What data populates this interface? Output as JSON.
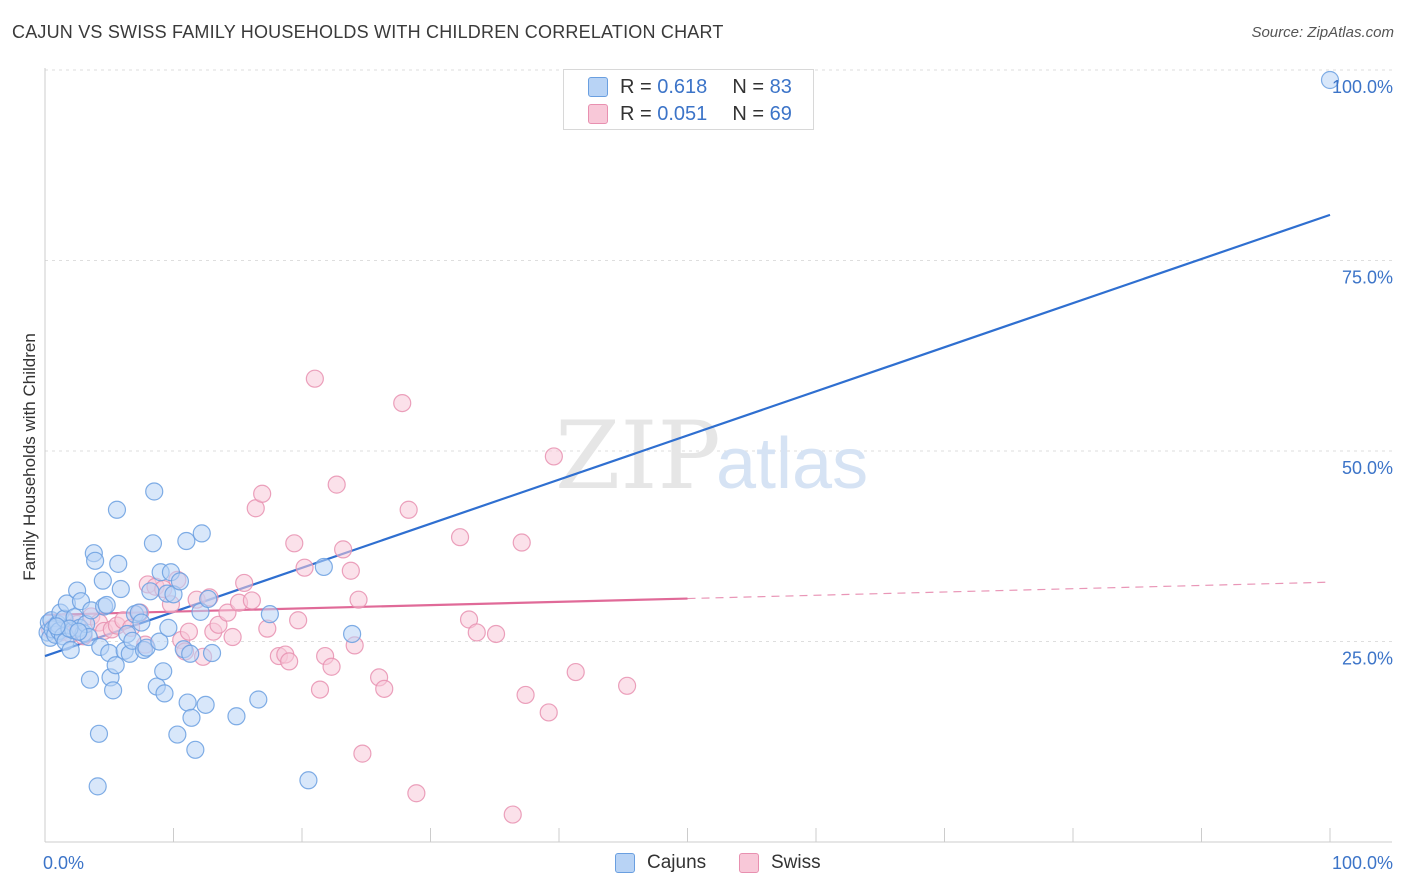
{
  "title": "CAJUN VS SWISS FAMILY HOUSEHOLDS WITH CHILDREN CORRELATION CHART",
  "source": "Source: ZipAtlas.com",
  "watermark": {
    "zip": "ZIP",
    "atlas": "atlas"
  },
  "legend_top": [
    {
      "r_label": "R =",
      "r_value": "0.618",
      "n_label": "N =",
      "n_value": "83",
      "color": "#b8d3f5"
    },
    {
      "r_label": "R =",
      "r_value": "0.051",
      "n_label": "N =",
      "n_value": "69",
      "color": "#f8c8d8"
    }
  ],
  "legend_bottom": [
    {
      "label": "Cajuns",
      "color": "#b8d3f5"
    },
    {
      "label": "Swiss",
      "color": "#f8c8d8"
    }
  ],
  "chart_data": {
    "type": "scatter",
    "title": "CAJUN VS SWISS FAMILY HOUSEHOLDS WITH CHILDREN CORRELATION CHART",
    "xlabel": "",
    "ylabel": "Family Households with Children",
    "xlim": [
      0,
      100
    ],
    "ylim": [
      0,
      100
    ],
    "x_tick_labels": [
      "0.0%",
      "100.0%"
    ],
    "y_tick_labels": [
      "100.0%",
      "75.0%",
      "50.0%",
      "25.0%"
    ],
    "y_ticks": [
      100,
      75,
      50,
      25
    ],
    "grid": true,
    "series": [
      {
        "name": "Cajuns",
        "color": "#6a9fe0",
        "fill": "#b8d3f5",
        "line_color": "#2f6fd0",
        "trend": {
          "x": [
            0,
            100
          ],
          "y": [
            24.4,
            82.3
          ],
          "dashed_from": null
        },
        "points": [
          [
            0.2,
            27.5
          ],
          [
            0.3,
            28.8
          ],
          [
            0.4,
            26.8
          ],
          [
            0.5,
            29.1
          ],
          [
            0.6,
            27.9
          ],
          [
            0.8,
            27.2
          ],
          [
            1.0,
            28.6
          ],
          [
            1.1,
            27.7
          ],
          [
            1.2,
            30.1
          ],
          [
            1.4,
            27.0
          ],
          [
            1.5,
            29.3
          ],
          [
            1.6,
            26.3
          ],
          [
            1.7,
            31.3
          ],
          [
            2.0,
            25.2
          ],
          [
            2.2,
            27.8
          ],
          [
            2.3,
            29.5
          ],
          [
            2.5,
            33.0
          ],
          [
            2.7,
            28.1
          ],
          [
            2.8,
            31.6
          ],
          [
            3.0,
            27.4
          ],
          [
            3.2,
            28.6
          ],
          [
            3.4,
            26.9
          ],
          [
            3.5,
            21.3
          ],
          [
            3.6,
            30.4
          ],
          [
            3.8,
            37.9
          ],
          [
            3.9,
            36.9
          ],
          [
            4.1,
            7.3
          ],
          [
            4.2,
            14.2
          ],
          [
            4.3,
            25.6
          ],
          [
            4.5,
            34.3
          ],
          [
            4.6,
            30.9
          ],
          [
            4.8,
            31.1
          ],
          [
            5.0,
            24.8
          ],
          [
            5.1,
            21.6
          ],
          [
            5.3,
            19.9
          ],
          [
            5.5,
            23.2
          ],
          [
            5.6,
            43.6
          ],
          [
            5.7,
            36.5
          ],
          [
            5.9,
            33.2
          ],
          [
            6.2,
            25.1
          ],
          [
            6.4,
            27.3
          ],
          [
            6.6,
            24.7
          ],
          [
            6.8,
            26.4
          ],
          [
            7.0,
            29.9
          ],
          [
            7.3,
            30.1
          ],
          [
            7.5,
            28.8
          ],
          [
            7.7,
            25.2
          ],
          [
            7.9,
            25.5
          ],
          [
            8.2,
            32.9
          ],
          [
            8.4,
            39.2
          ],
          [
            8.5,
            46.0
          ],
          [
            8.7,
            20.4
          ],
          [
            8.9,
            26.3
          ],
          [
            9.0,
            35.4
          ],
          [
            9.2,
            22.4
          ],
          [
            9.3,
            19.5
          ],
          [
            9.5,
            32.6
          ],
          [
            9.6,
            28.1
          ],
          [
            9.8,
            35.4
          ],
          [
            10.0,
            32.5
          ],
          [
            10.3,
            14.1
          ],
          [
            10.5,
            34.2
          ],
          [
            10.8,
            25.3
          ],
          [
            11.0,
            39.5
          ],
          [
            11.1,
            18.3
          ],
          [
            11.3,
            24.7
          ],
          [
            11.4,
            16.3
          ],
          [
            11.7,
            12.1
          ],
          [
            12.1,
            30.2
          ],
          [
            12.2,
            40.5
          ],
          [
            12.5,
            18.0
          ],
          [
            12.7,
            31.9
          ],
          [
            13.0,
            24.8
          ],
          [
            14.9,
            16.5
          ],
          [
            16.6,
            18.7
          ],
          [
            17.5,
            29.9
          ],
          [
            20.5,
            8.1
          ],
          [
            21.7,
            36.1
          ],
          [
            23.9,
            27.3
          ],
          [
            100.0,
            100.0
          ],
          [
            1.9,
            28.0
          ],
          [
            2.6,
            27.6
          ],
          [
            0.9,
            28.3
          ]
        ]
      },
      {
        "name": "Swiss",
        "color": "#e890b0",
        "fill": "#f8c8d8",
        "line_color": "#e06a98",
        "trend": {
          "x": [
            0,
            100
          ],
          "y": [
            29.8,
            34.1
          ],
          "dashed_from": 50
        },
        "points": [
          [
            0.4,
            27.9
          ],
          [
            0.8,
            28.4
          ],
          [
            1.2,
            27.5
          ],
          [
            1.6,
            28.9
          ],
          [
            2.0,
            27.3
          ],
          [
            2.5,
            28.6
          ],
          [
            3.0,
            27.0
          ],
          [
            3.6,
            29.6
          ],
          [
            4.2,
            28.8
          ],
          [
            4.6,
            27.7
          ],
          [
            5.2,
            27.9
          ],
          [
            5.6,
            28.4
          ],
          [
            6.1,
            29.1
          ],
          [
            6.7,
            28.1
          ],
          [
            7.4,
            30.1
          ],
          [
            7.8,
            25.9
          ],
          [
            8.0,
            33.8
          ],
          [
            8.6,
            33.5
          ],
          [
            9.2,
            33.2
          ],
          [
            9.8,
            31.2
          ],
          [
            10.3,
            34.4
          ],
          [
            10.6,
            26.5
          ],
          [
            10.9,
            25.0
          ],
          [
            11.2,
            27.6
          ],
          [
            11.8,
            31.8
          ],
          [
            12.3,
            24.3
          ],
          [
            12.8,
            32.1
          ],
          [
            13.1,
            27.6
          ],
          [
            13.5,
            28.5
          ],
          [
            14.2,
            30.1
          ],
          [
            14.6,
            26.9
          ],
          [
            15.1,
            31.4
          ],
          [
            15.5,
            34.0
          ],
          [
            16.1,
            31.7
          ],
          [
            16.4,
            43.8
          ],
          [
            16.9,
            45.7
          ],
          [
            17.3,
            28.0
          ],
          [
            18.2,
            24.4
          ],
          [
            18.7,
            24.6
          ],
          [
            19.0,
            23.7
          ],
          [
            19.4,
            39.2
          ],
          [
            19.7,
            29.1
          ],
          [
            20.2,
            36.0
          ],
          [
            21.0,
            60.8
          ],
          [
            21.4,
            20.0
          ],
          [
            21.8,
            24.4
          ],
          [
            22.3,
            23.0
          ],
          [
            22.7,
            46.9
          ],
          [
            23.2,
            38.4
          ],
          [
            23.8,
            35.6
          ],
          [
            24.1,
            25.8
          ],
          [
            24.4,
            31.8
          ],
          [
            24.7,
            11.6
          ],
          [
            26.0,
            21.6
          ],
          [
            26.4,
            20.1
          ],
          [
            27.8,
            57.6
          ],
          [
            28.3,
            43.6
          ],
          [
            28.9,
            6.4
          ],
          [
            32.3,
            40.0
          ],
          [
            33.0,
            29.2
          ],
          [
            33.6,
            27.5
          ],
          [
            35.1,
            27.3
          ],
          [
            36.4,
            3.6
          ],
          [
            37.1,
            39.3
          ],
          [
            37.4,
            19.3
          ],
          [
            39.2,
            17.0
          ],
          [
            39.6,
            50.6
          ],
          [
            41.3,
            22.3
          ],
          [
            45.3,
            20.5
          ]
        ]
      }
    ]
  }
}
